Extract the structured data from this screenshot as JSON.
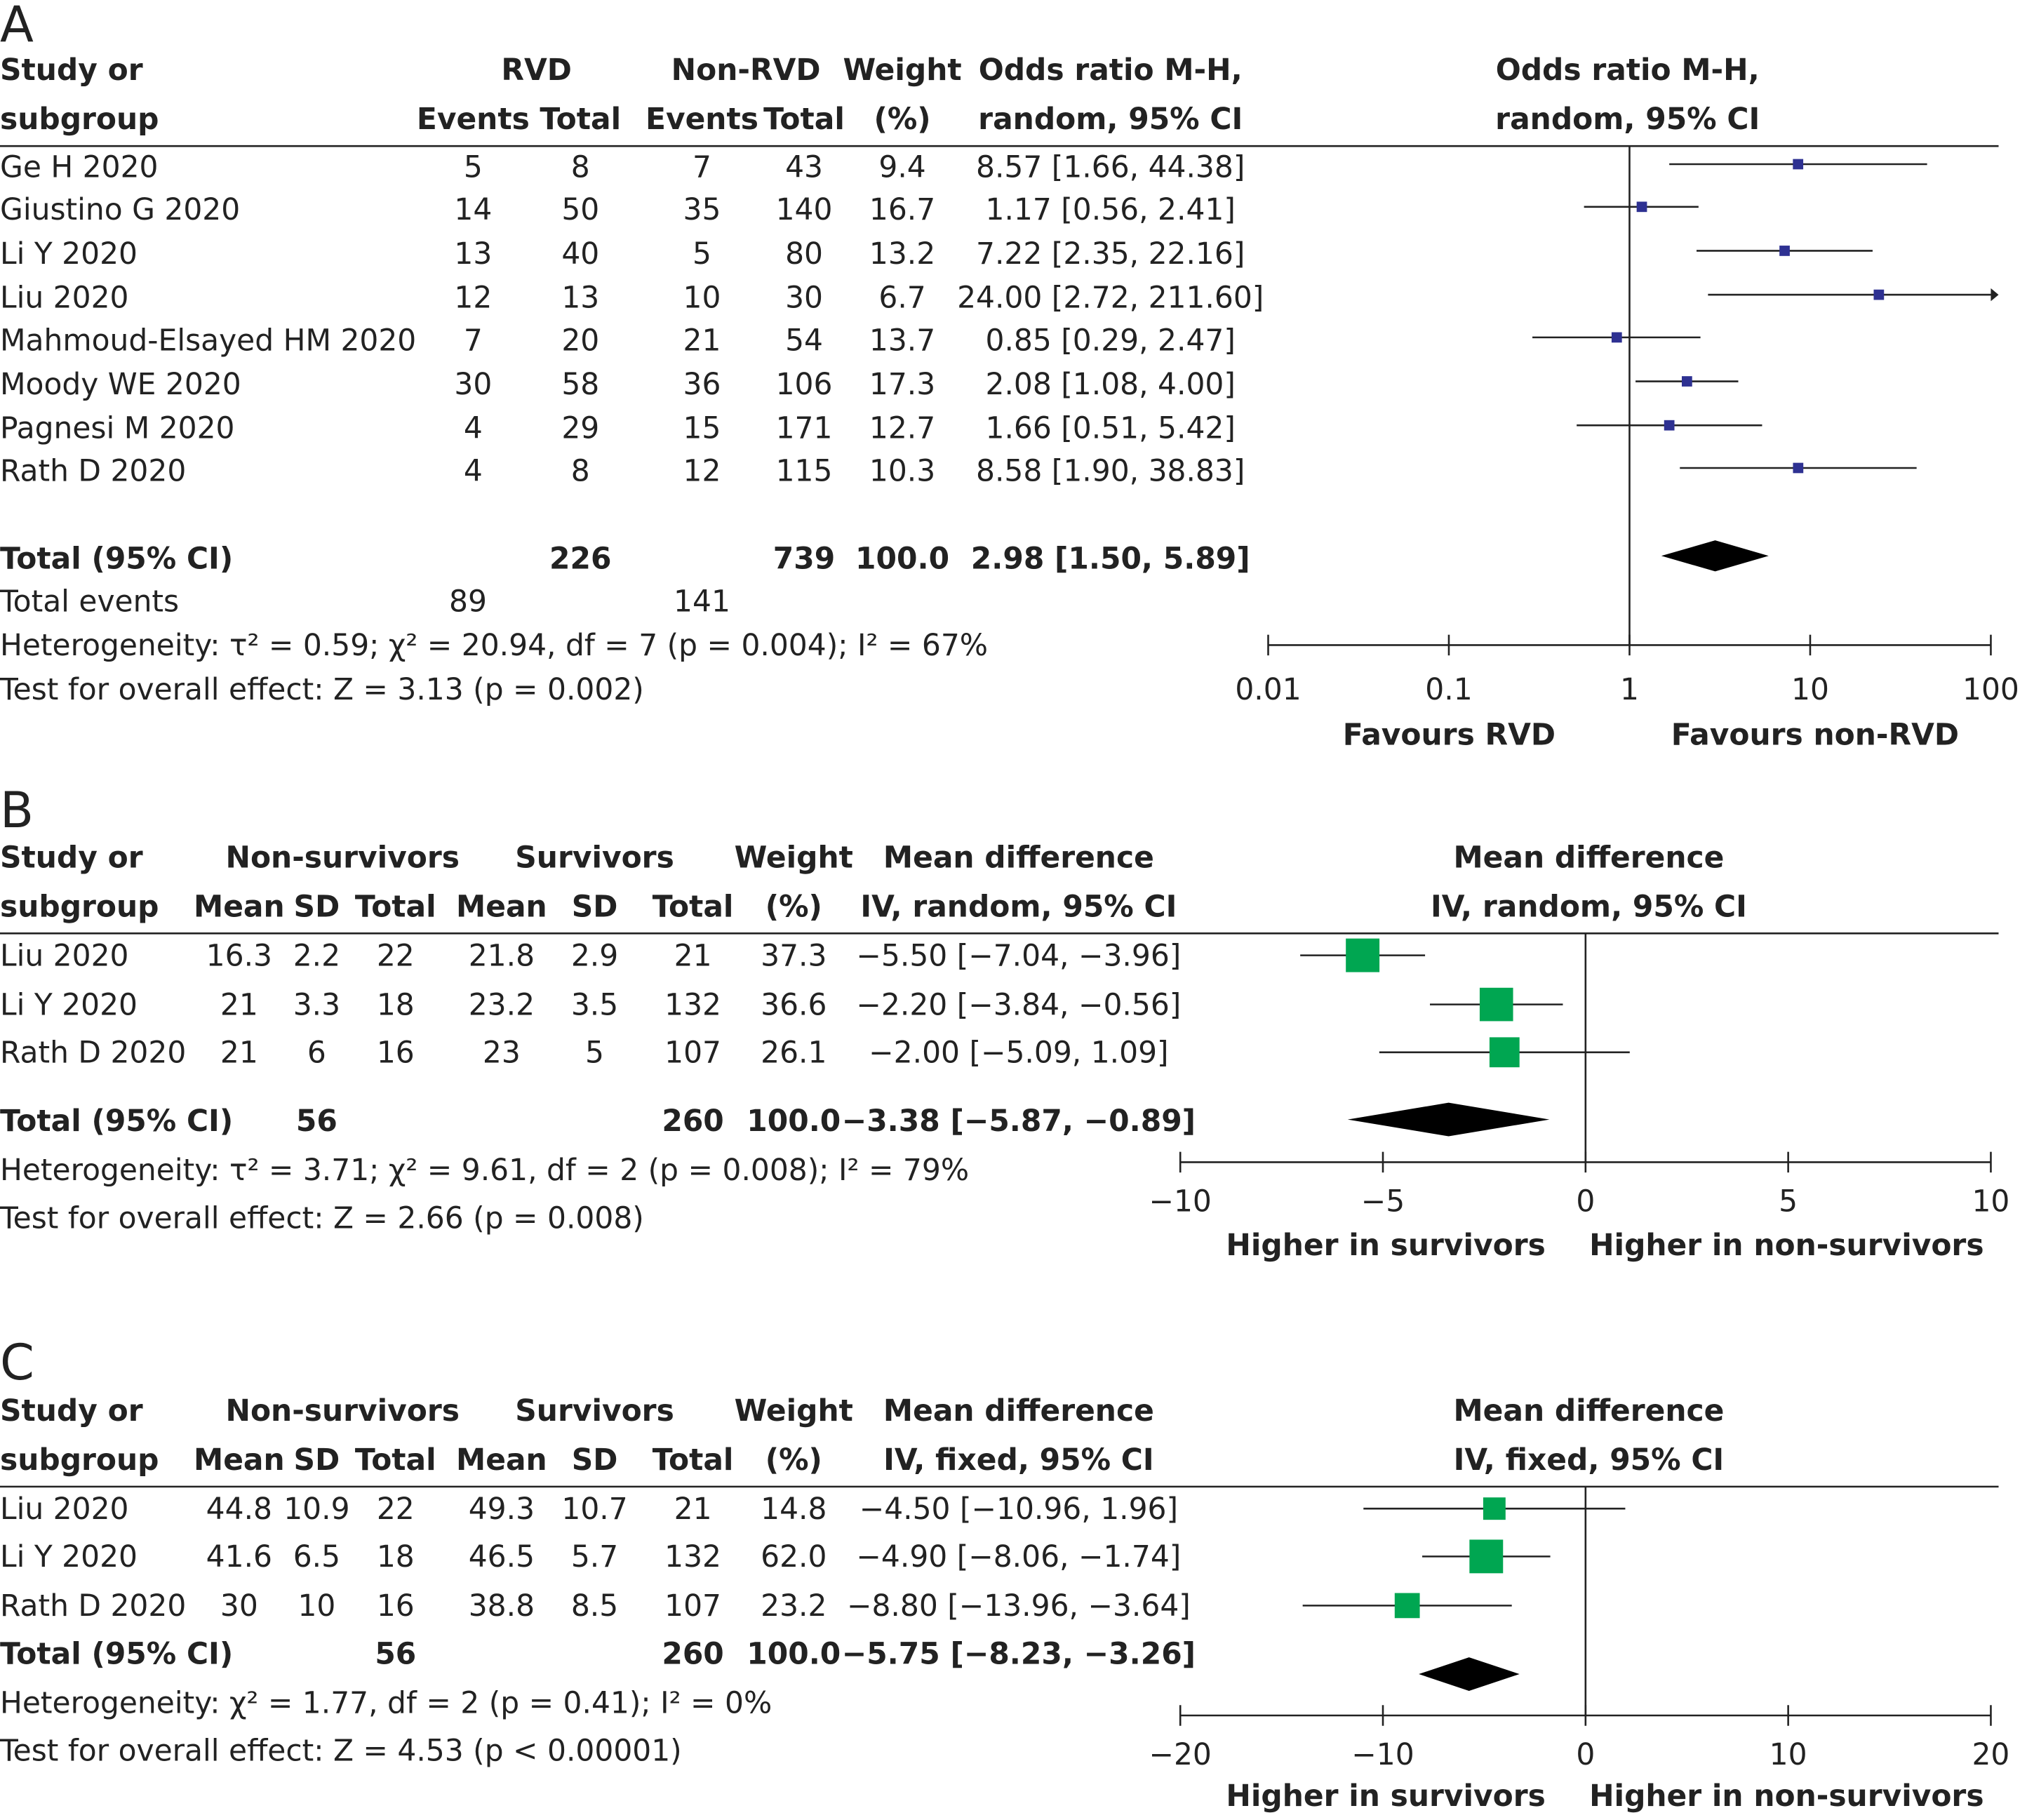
{
  "colors": {
    "panel_a_marker": "#2e3192",
    "panel_bc_marker": "#00a651",
    "diamond": "#000000",
    "text": "#222222"
  },
  "chart_data": [
    {
      "panel": "A",
      "type": "forest",
      "header": {
        "study": [
          "Study or",
          "subgroup"
        ],
        "group1": "RVD",
        "group2": "Non-RVD",
        "sub_events": "Events",
        "sub_total": "Total",
        "weight": [
          "Weight",
          "(%)"
        ],
        "effect": [
          "Odds ratio M-H,",
          "random, 95% CI"
        ],
        "plot_header": [
          "Odds ratio M-H,",
          "random, 95% CI"
        ]
      },
      "rows": [
        {
          "study": "Ge H 2020",
          "e1": "5",
          "n1": "8",
          "e2": "7",
          "n2": "43",
          "weight": "9.4",
          "ci_text": "8.57 [1.66, 44.38]",
          "est": 8.57,
          "lo": 1.66,
          "hi": 44.38
        },
        {
          "study": "Giustino G 2020",
          "e1": "14",
          "n1": "50",
          "e2": "35",
          "n2": "140",
          "weight": "16.7",
          "ci_text": "1.17 [0.56, 2.41]",
          "est": 1.17,
          "lo": 0.56,
          "hi": 2.41
        },
        {
          "study": "Li Y 2020",
          "e1": "13",
          "n1": "40",
          "e2": "5",
          "n2": "80",
          "weight": "13.2",
          "ci_text": "7.22 [2.35, 22.16]",
          "est": 7.22,
          "lo": 2.35,
          "hi": 22.16
        },
        {
          "study": "Liu 2020",
          "e1": "12",
          "n1": "13",
          "e2": "10",
          "n2": "30",
          "weight": "6.7",
          "ci_text": "24.00 [2.72, 211.60]",
          "est": 24.0,
          "lo": 2.72,
          "hi": 211.6
        },
        {
          "study": "Mahmoud-Elsayed HM 2020",
          "e1": "7",
          "n1": "20",
          "e2": "21",
          "n2": "54",
          "weight": "13.7",
          "ci_text": "0.85 [0.29, 2.47]",
          "est": 0.85,
          "lo": 0.29,
          "hi": 2.47
        },
        {
          "study": "Moody WE 2020",
          "e1": "30",
          "n1": "58",
          "e2": "36",
          "n2": "106",
          "weight": "17.3",
          "ci_text": "2.08 [1.08, 4.00]",
          "est": 2.08,
          "lo": 1.08,
          "hi": 4.0
        },
        {
          "study": "Pagnesi M 2020",
          "e1": "4",
          "n1": "29",
          "e2": "15",
          "n2": "171",
          "weight": "12.7",
          "ci_text": "1.66 [0.51, 5.42]",
          "est": 1.66,
          "lo": 0.51,
          "hi": 5.42
        },
        {
          "study": "Rath D 2020",
          "e1": "4",
          "n1": "8",
          "e2": "12",
          "n2": "115",
          "weight": "10.3",
          "ci_text": "8.58 [1.90, 38.83]",
          "est": 8.58,
          "lo": 1.9,
          "hi": 38.83
        }
      ],
      "total": {
        "label": "Total (95% CI)",
        "n1": "226",
        "n2": "739",
        "weight": "100.0",
        "ci_text": "2.98 [1.50, 5.89]",
        "est": 2.98,
        "lo": 1.5,
        "hi": 5.89
      },
      "total_events": {
        "label": "Total events",
        "e1": "89",
        "e2": "141"
      },
      "heterogeneity": "Heterogeneity: τ² = 0.59; χ² = 20.94, df = 7 (p = 0.004); I² = 67%",
      "overall_effect": "Test for overall effect: Z = 3.13 (p = 0.002)",
      "axis": {
        "scale": "log",
        "ticks": [
          0.01,
          0.1,
          1,
          10,
          100
        ],
        "tick_labels": [
          "0.01",
          "0.1",
          "1",
          "10",
          "100"
        ],
        "null": 1
      },
      "favours_left": "Favours RVD",
      "favours_right": "Favours non-RVD"
    },
    {
      "panel": "B",
      "type": "forest",
      "header": {
        "study": [
          "Study or",
          "subgroup"
        ],
        "group1": "Non-survivors",
        "group2": "Survivors",
        "sub_mean": "Mean",
        "sub_sd": "SD",
        "sub_total": "Total",
        "weight": [
          "Weight",
          "(%)"
        ],
        "effect": [
          "Mean difference",
          "IV, random, 95% CI"
        ],
        "plot_header": [
          "Mean difference",
          "IV, random, 95% CI"
        ]
      },
      "rows": [
        {
          "study": "Liu 2020",
          "m1": "16.3",
          "sd1": "2.2",
          "n1": "22",
          "m2": "21.8",
          "sd2": "2.9",
          "n2": "21",
          "weight": "37.3",
          "ci_text": "−5.50 [−7.04, −3.96]",
          "est": -5.5,
          "lo": -7.04,
          "hi": -3.96,
          "w": 37.3
        },
        {
          "study": "Li Y 2020",
          "m1": "21",
          "sd1": "3.3",
          "n1": "18",
          "m2": "23.2",
          "sd2": "3.5",
          "n2": "132",
          "weight": "36.6",
          "ci_text": "−2.20 [−3.84, −0.56]",
          "est": -2.2,
          "lo": -3.84,
          "hi": -0.56,
          "w": 36.6
        },
        {
          "study": "Rath D 2020",
          "m1": "21",
          "sd1": "6",
          "n1": "16",
          "m2": "23",
          "sd2": "5",
          "n2": "107",
          "weight": "26.1",
          "ci_text": "−2.00 [−5.09, 1.09]",
          "est": -2.0,
          "lo": -5.09,
          "hi": 1.09,
          "w": 26.1
        }
      ],
      "total": {
        "label": "Total (95% CI)",
        "n1": "56",
        "n2": "260",
        "weight": "100.0",
        "ci_text": "−3.38 [−5.87, −0.89]",
        "est": -3.38,
        "lo": -5.87,
        "hi": -0.89
      },
      "heterogeneity": "Heterogeneity: τ² = 3.71; χ² = 9.61, df = 2 (p = 0.008); I² = 79%",
      "overall_effect": "Test for overall effect: Z = 2.66 (p = 0.008)",
      "axis": {
        "scale": "linear",
        "ticks": [
          -10,
          -5,
          0,
          5,
          10
        ],
        "tick_labels": [
          "−10",
          "−5",
          "0",
          "5",
          "10"
        ],
        "null": 0
      },
      "favours_left": "Higher in survivors",
      "favours_right": "Higher in non-survivors"
    },
    {
      "panel": "C",
      "type": "forest",
      "header": {
        "study": [
          "Study or",
          "subgroup"
        ],
        "group1": "Non-survivors",
        "group2": "Survivors",
        "sub_mean": "Mean",
        "sub_sd": "SD",
        "sub_total": "Total",
        "weight": [
          "Weight",
          "(%)"
        ],
        "effect": [
          "Mean difference",
          "IV, fixed, 95% CI"
        ],
        "plot_header": [
          "Mean difference",
          "IV, fixed, 95% CI"
        ]
      },
      "rows": [
        {
          "study": "Liu 2020",
          "m1": "44.8",
          "sd1": "10.9",
          "n1": "22",
          "m2": "49.3",
          "sd2": "10.7",
          "n2": "21",
          "weight": "14.8",
          "ci_text": "−4.50 [−10.96, 1.96]",
          "est": -4.5,
          "lo": -10.96,
          "hi": 1.96,
          "w": 14.8
        },
        {
          "study": "Li Y 2020",
          "m1": "41.6",
          "sd1": "6.5",
          "n1": "18",
          "m2": "46.5",
          "sd2": "5.7",
          "n2": "132",
          "weight": "62.0",
          "ci_text": "−4.90 [−8.06, −1.74]",
          "est": -4.9,
          "lo": -8.06,
          "hi": -1.74,
          "w": 62.0
        },
        {
          "study": "Rath D 2020",
          "m1": "30",
          "sd1": "10",
          "n1": "16",
          "m2": "38.8",
          "sd2": "8.5",
          "n2": "107",
          "weight": "23.2",
          "ci_text": "−8.80 [−13.96, −3.64]",
          "est": -8.8,
          "lo": -13.96,
          "hi": -3.64,
          "w": 23.2
        }
      ],
      "total": {
        "label": "Total (95% CI)",
        "n1": "56",
        "n2": "260",
        "weight": "100.0",
        "ci_text": "−5.75 [−8.23, −3.26]",
        "est": -5.75,
        "lo": -8.23,
        "hi": -3.26
      },
      "heterogeneity": "Heterogeneity: χ² = 1.77, df = 2 (p = 0.41); I² = 0%",
      "overall_effect": "Test for overall effect: Z = 4.53 (p < 0.00001)",
      "axis": {
        "scale": "linear",
        "ticks": [
          -20,
          -10,
          0,
          10,
          20
        ],
        "tick_labels": [
          "−20",
          "−10",
          "0",
          "10",
          "20"
        ],
        "null": 0
      },
      "favours_left": "Higher in survivors",
      "favours_right": "Higher in non-survivors"
    }
  ]
}
